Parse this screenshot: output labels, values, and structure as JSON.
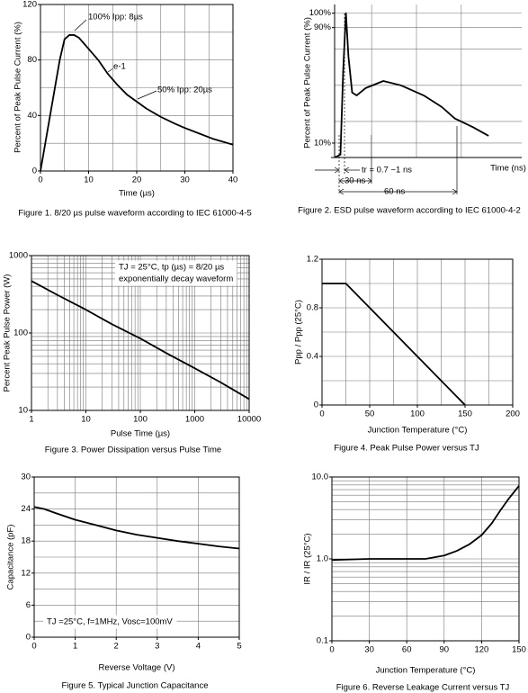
{
  "chart_data": [
    {
      "type": "line",
      "caption": "Figure 1. 8/20 µs pulse waveform according to IEC 61000-4-5",
      "xlabel": "Time (µs)",
      "ylabel": "Percent of Peak Pulse Current (%)",
      "color": "#000000",
      "frame": true,
      "xlim": [
        0,
        40
      ],
      "ylim": [
        0,
        120
      ],
      "xticks": [
        0,
        10,
        20,
        30,
        40
      ],
      "yticks": [
        0,
        40,
        80,
        120
      ],
      "xgrid": [
        0,
        5,
        10,
        15,
        20,
        25,
        30,
        35,
        40
      ],
      "ygrid": [
        0,
        20,
        40,
        60,
        80,
        100,
        120
      ],
      "x": [
        0,
        2,
        4,
        5,
        6,
        7,
        8,
        10,
        12,
        14,
        16,
        18,
        20,
        22,
        25,
        28,
        30,
        33,
        36,
        40
      ],
      "values": [
        0,
        40,
        80,
        95,
        98,
        98,
        96,
        88,
        80,
        70,
        62,
        55,
        50,
        45,
        39,
        34,
        31,
        27,
        23,
        19
      ],
      "annotations": [
        "100% Ipp: 8µs",
        "e-1",
        "50% Ipp: 20µs"
      ]
    },
    {
      "type": "line",
      "caption": "Figure 2. ESD pulse waveform according to IEC 61000-4-2",
      "xlabel": "Time (ns)",
      "ylabel": "Percent of Peak Pulse Current (%)",
      "color": "#000000",
      "frame": false,
      "xlim": [
        -3,
        93
      ],
      "ylim": [
        0,
        106
      ],
      "yticks": [
        {
          "value": 100,
          "label": "100%"
        },
        {
          "value": 90,
          "label": "90%"
        },
        {
          "value": 10,
          "label": "10%"
        }
      ],
      "xgrid": [
        16,
        39,
        62
      ],
      "ygrid": [
        10,
        25,
        50,
        75,
        90,
        100
      ],
      "x": [
        -3,
        0,
        1.4,
        2.8,
        4.1,
        6,
        8.3,
        12.8,
        22,
        31,
        42.7,
        52,
        58.7,
        68,
        76
      ],
      "values": [
        0,
        2,
        60,
        100,
        70,
        45,
        43,
        48,
        53,
        50,
        43,
        35,
        27,
        21,
        15
      ],
      "annotations": [
        "tr = 0.7 ~1 ns",
        "30 ns",
        "60 ns"
      ]
    },
    {
      "type": "line",
      "caption": "Figure 3. Power Dissipation versus Pulse Time",
      "xlabel": "Pulse Time (µs)",
      "ylabel": "Percent Peak Pulse Power (W)",
      "color": "#000000",
      "frame": true,
      "xlog": true,
      "ylog": true,
      "xlim": [
        1,
        10000
      ],
      "ylim": [
        10,
        1000
      ],
      "xticks": [
        1,
        10,
        100,
        1000,
        10000
      ],
      "yticks": [
        10,
        100,
        1000
      ],
      "xgrid": [
        1,
        2,
        3,
        4,
        5,
        6,
        7,
        8,
        9,
        10,
        20,
        30,
        40,
        50,
        60,
        70,
        80,
        90,
        100,
        200,
        300,
        400,
        500,
        600,
        700,
        800,
        900,
        1000,
        2000,
        3000,
        4000,
        5000,
        6000,
        7000,
        8000,
        9000,
        10000
      ],
      "ygrid": [
        10,
        20,
        30,
        40,
        50,
        60,
        70,
        80,
        90,
        100,
        200,
        300,
        400,
        500,
        600,
        700,
        800,
        900,
        1000
      ],
      "x": [
        1,
        3,
        10,
        30,
        100,
        300,
        1000,
        3000,
        10000
      ],
      "values": [
        470,
        310,
        200,
        130,
        85,
        55,
        35,
        23,
        14
      ],
      "annotations": [
        "TJ = 25°C, tp (µs) = 8/20 µs",
        "exponentially decay waveform"
      ]
    },
    {
      "type": "line",
      "caption": "Figure 4. Peak Pulse Power versus TJ",
      "xlabel": "Junction Temperature (°C)",
      "ylabel": "Ppp / Ppp (25°C)",
      "color": "#000000",
      "frame": true,
      "xlim": [
        0,
        200
      ],
      "ylim": [
        0,
        1.2
      ],
      "xticks": [
        0,
        50,
        100,
        150,
        200
      ],
      "yticks": [
        0,
        0.4,
        0.8,
        1.2
      ],
      "xgrid": [
        0,
        25,
        50,
        75,
        100,
        125,
        150,
        175,
        200
      ],
      "ygrid": [
        0,
        0.2,
        0.4,
        0.6,
        0.8,
        1.0,
        1.2
      ],
      "x": [
        0,
        25,
        150
      ],
      "values": [
        1,
        1,
        0
      ]
    },
    {
      "type": "line",
      "caption": "Figure 5. Typical Junction Capacitance",
      "xlabel": "Reverse Voltage (V)",
      "ylabel": "Capacitance (pF)",
      "color": "#000000",
      "frame": true,
      "xlim": [
        0,
        5
      ],
      "ylim": [
        0,
        30
      ],
      "xticks": [
        0,
        1,
        2,
        3,
        4,
        5
      ],
      "yticks": [
        0,
        6,
        12,
        18,
        24,
        30
      ],
      "ygrid": [
        0,
        3,
        6,
        9,
        12,
        15,
        18,
        21,
        24,
        27,
        30
      ],
      "x": [
        0,
        0.25,
        0.5,
        1,
        1.5,
        2,
        2.5,
        3,
        3.5,
        4,
        4.5,
        5
      ],
      "values": [
        24.4,
        24,
        23.3,
        22,
        21,
        20,
        19.2,
        18.6,
        18,
        17.5,
        17,
        16.6
      ],
      "annotations": [
        "TJ =25°C, f=1MHz, Vosc=100mV"
      ]
    },
    {
      "type": "line",
      "caption": "Figure 6. Reverse Leakage Current versus TJ",
      "xlabel": "Junction Temperature (°C)",
      "ylabel": "IR / IR (25°C)",
      "color": "#000000",
      "frame": true,
      "ylog": true,
      "xlim": [
        0,
        150
      ],
      "ylim": [
        0.1,
        10
      ],
      "xticks": [
        0,
        30,
        60,
        90,
        120,
        150
      ],
      "yticks": [
        0.1,
        {
          "value": 1,
          "label": "1.0"
        },
        {
          "value": 10,
          "label": "10.0"
        }
      ],
      "ygrid": [
        0.1,
        0.2,
        0.3,
        0.4,
        0.5,
        0.6,
        0.7,
        0.8,
        0.9,
        1,
        2,
        3,
        4,
        5,
        6,
        7,
        8,
        9,
        10
      ],
      "x": [
        0,
        30,
        60,
        75,
        90,
        100,
        110,
        120,
        128,
        135,
        142,
        150
      ],
      "values": [
        0.97,
        1,
        1,
        1,
        1.1,
        1.25,
        1.5,
        1.95,
        2.7,
        3.9,
        5.5,
        7.8
      ]
    }
  ]
}
